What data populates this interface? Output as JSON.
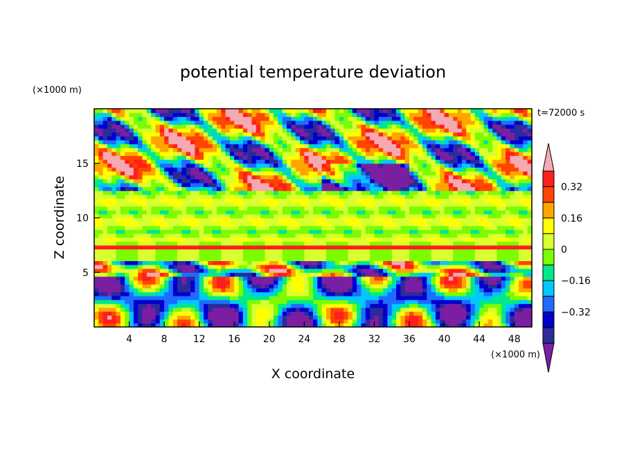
{
  "chart_data": {
    "type": "heatmap",
    "title": "potential temperature deviation",
    "xlabel": "X coordinate",
    "ylabel": "Z coordinate",
    "x_unit": "(×1000 m)",
    "y_unit": "(×1000 m)",
    "time_label": "t=72000 s",
    "xlim": [
      0,
      50
    ],
    "ylim": [
      0,
      20
    ],
    "x_ticks": [
      4,
      8,
      12,
      16,
      20,
      24,
      28,
      32,
      36,
      40,
      44,
      48
    ],
    "x_tick_labels": [
      "4",
      "8",
      "12",
      "16",
      "20",
      "24",
      "28",
      "32",
      "36",
      "40",
      "44",
      "48"
    ],
    "y_ticks": [
      5,
      10,
      15
    ],
    "y_tick_labels": [
      "5",
      "10",
      "15"
    ],
    "grid": false,
    "colorbar": {
      "levels": [
        -0.48,
        -0.4,
        -0.32,
        -0.24,
        -0.16,
        -0.08,
        0,
        0.08,
        0.16,
        0.24,
        0.32,
        0.4
      ],
      "labeled_levels": [
        0.32,
        0.16,
        0,
        -0.16,
        -0.32
      ],
      "labels": [
        "0.32",
        "0.16",
        "0",
        "−0.16",
        "−0.32"
      ],
      "colors": [
        "#7a1fa2",
        "#2b2b9b",
        "#0000cd",
        "#1e6cff",
        "#00c8ff",
        "#00e88c",
        "#7cfc00",
        "#d8ff30",
        "#ffff00",
        "#ffa500",
        "#ff4500",
        "#ff1e1e",
        "#f5a9b0"
      ],
      "extend": "both"
    }
  }
}
